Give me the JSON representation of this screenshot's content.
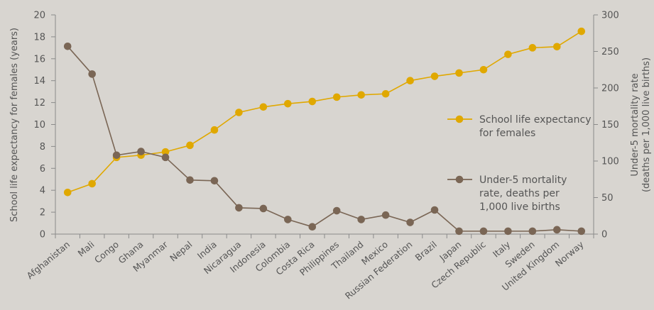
{
  "chart_data": {
    "type": "line",
    "categories": [
      "Afghanistan",
      "Mali",
      "Congo",
      "Ghana",
      "Myanmar",
      "Nepal",
      "India",
      "Nicaragua",
      "Indonesia",
      "Colombia",
      "Costa Rica",
      "Philippines",
      "Thailand",
      "Mexico",
      "Russian Federation",
      "Brazil",
      "Japan",
      "Czech Republic",
      "Italy",
      "Sweden",
      "United Kingdom",
      "Norway"
    ],
    "series": [
      {
        "name": "School life expectancy for females",
        "axis": "left",
        "color": "#e0a800",
        "values": [
          3.8,
          4.6,
          7.0,
          7.2,
          7.5,
          8.1,
          9.5,
          11.1,
          11.6,
          11.9,
          12.1,
          12.5,
          12.7,
          12.8,
          14.0,
          14.4,
          14.7,
          15.0,
          16.4,
          17.0,
          17.1,
          18.5
        ]
      },
      {
        "name": "Under-5 mortality rate, deaths per 1,000 live births",
        "axis": "right",
        "color": "#7a6655",
        "values": [
          257,
          219,
          108,
          113,
          105,
          74,
          73,
          36,
          35,
          20,
          10,
          32,
          20,
          26,
          16,
          33,
          4,
          4,
          4,
          4,
          6,
          4
        ]
      }
    ],
    "ylim_left": [
      0,
      20
    ],
    "yticks_left": [
      0,
      2,
      4,
      6,
      8,
      10,
      12,
      14,
      16,
      18,
      20
    ],
    "ylim_right": [
      0,
      300
    ],
    "yticks_right": [
      0,
      50,
      100,
      150,
      200,
      250,
      300
    ],
    "ylabel_left": "School life expectancy for females (years)",
    "ylabel_right_line1": "Under-5 mortality rate",
    "ylabel_right_line2": "(deaths per 1,000 live births)",
    "legend": {
      "placement": "right",
      "entries": [
        {
          "lines": [
            "School life expectancy",
            "for females"
          ]
        },
        {
          "lines": [
            "Under-5 mortality",
            "rate, deaths per",
            "1,000 live births"
          ]
        }
      ]
    },
    "grid": false
  }
}
